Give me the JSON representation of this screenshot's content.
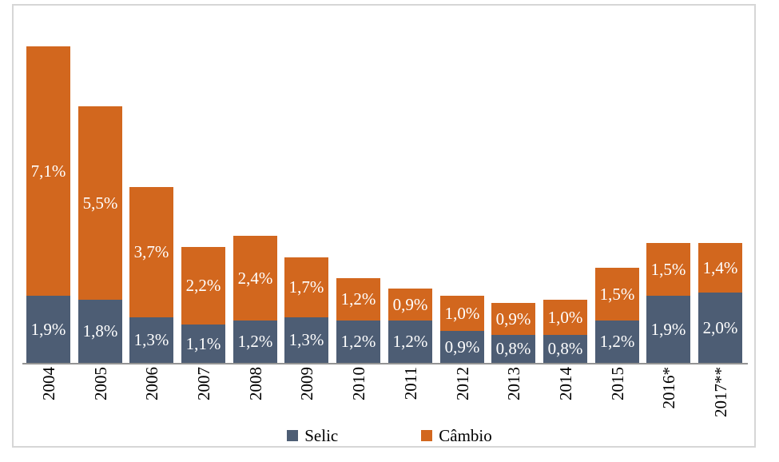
{
  "window": {
    "background": "#FFFFFF",
    "frame_border_color": "#D6D6D6"
  },
  "chart_data": {
    "type": "bar",
    "stacked": true,
    "title": "",
    "xlabel": "",
    "ylabel": "",
    "grid": false,
    "y_axis_visible": false,
    "ylim": [
      0,
      9.5
    ],
    "axis_line_color": "#949494",
    "value_label_color": "#FFFFFF",
    "categories": [
      "2004",
      "2005",
      "2006",
      "2007",
      "2008",
      "2009",
      "2010",
      "2011",
      "2012",
      "2013",
      "2014",
      "2015",
      "2016*",
      "2017**"
    ],
    "series": [
      {
        "name": "Selic",
        "color": "#4D5D74",
        "values": [
          1.9,
          1.8,
          1.3,
          1.1,
          1.2,
          1.3,
          1.2,
          1.2,
          0.9,
          0.8,
          0.8,
          1.2,
          1.9,
          2.0
        ],
        "labels": [
          "1,9%",
          "1,8%",
          "1,3%",
          "1,1%",
          "1,2%",
          "1,3%",
          "1,2%",
          "1,2%",
          "0,9%",
          "0,8%",
          "0,8%",
          "1,2%",
          "1,9%",
          "2,0%"
        ]
      },
      {
        "name": "Câmbio",
        "color": "#D2671E",
        "values": [
          7.1,
          5.5,
          3.7,
          2.2,
          2.4,
          1.7,
          1.2,
          0.9,
          1.0,
          0.9,
          1.0,
          1.5,
          1.5,
          1.4
        ],
        "labels": [
          "7,1%",
          "5,5%",
          "3,7%",
          "2,2%",
          "2,4%",
          "1,7%",
          "1,2%",
          "0,9%",
          "1,0%",
          "0,9%",
          "1,0%",
          "1,5%",
          "1,5%",
          "1,4%"
        ]
      }
    ],
    "legend": {
      "position": "bottom",
      "items": [
        "Selic",
        "Câmbio"
      ]
    }
  }
}
